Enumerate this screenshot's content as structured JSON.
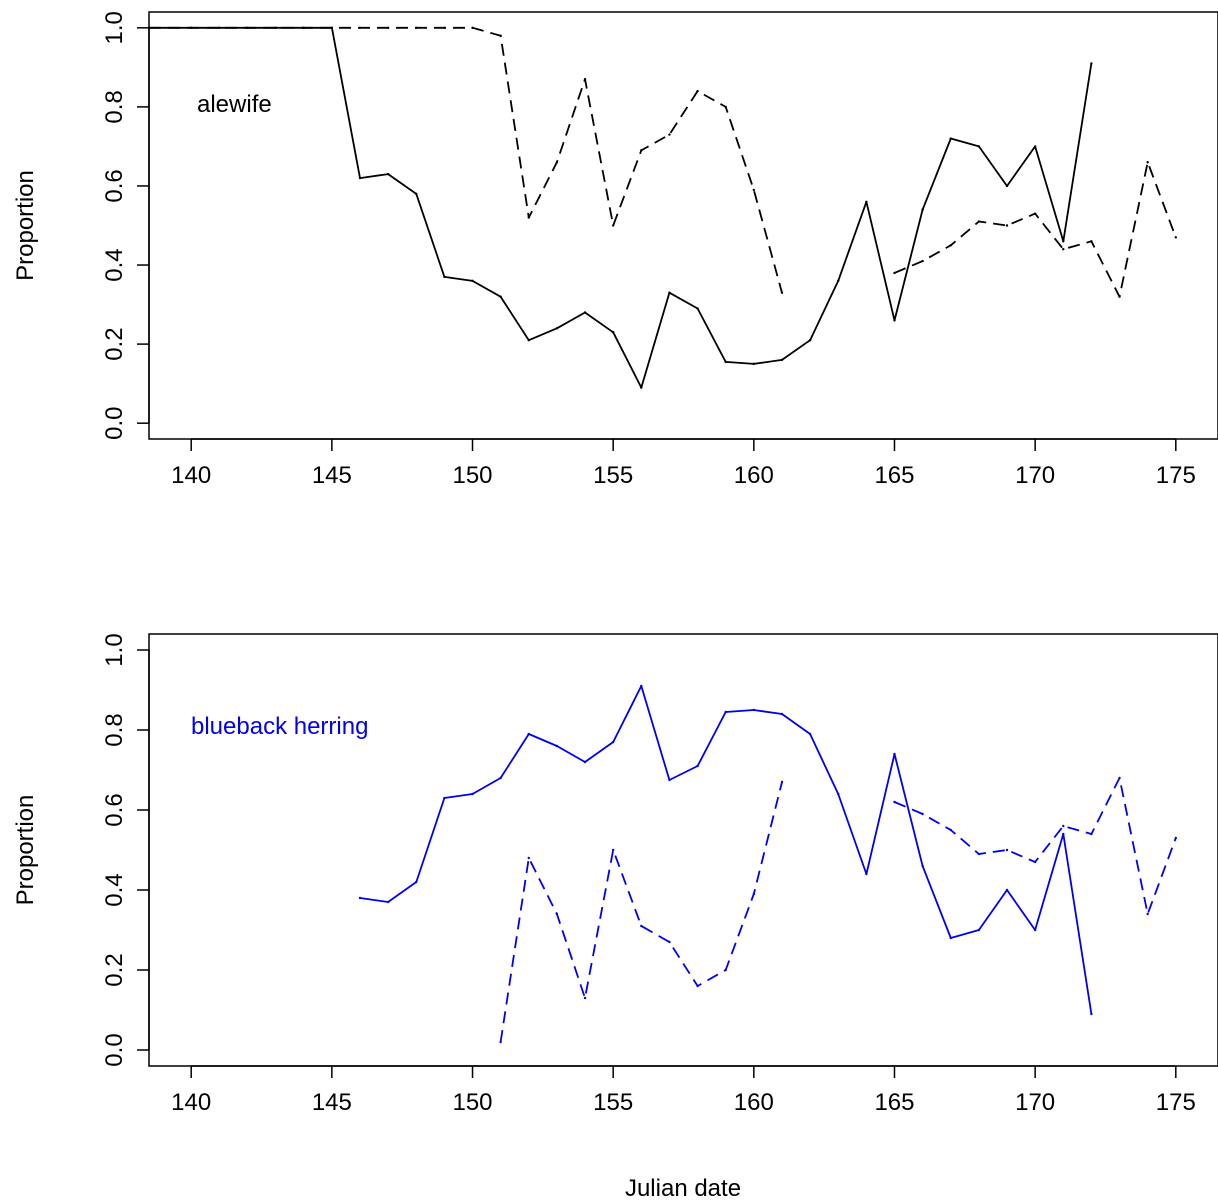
{
  "chart_data": [
    {
      "type": "line",
      "title": "",
      "annotation": "alewife",
      "color": "#000000",
      "xlabel": "",
      "ylabel": "Proportion",
      "xlim": [
        138.5,
        176.5
      ],
      "ylim": [
        -0.04,
        1.04
      ],
      "xticks": [
        140,
        145,
        150,
        155,
        160,
        165,
        170,
        175
      ],
      "yticks": [
        0.0,
        0.2,
        0.4,
        0.6,
        0.8,
        1.0
      ],
      "xtick_labels": [
        "140",
        "145",
        "150",
        "155",
        "160",
        "165",
        "170",
        "175"
      ],
      "ytick_labels": [
        "0.0",
        "0.2",
        "0.4",
        "0.6",
        "0.8",
        "1.0"
      ],
      "grid": false,
      "series": [
        {
          "style": "solid",
          "x": [
            138.5,
            140,
            141,
            142,
            143,
            144,
            145,
            146,
            147,
            148,
            149,
            150,
            151,
            152,
            153,
            154,
            155,
            156,
            157,
            158,
            159,
            160,
            161,
            162,
            163,
            164,
            165,
            166,
            167,
            168,
            169,
            170,
            171,
            172
          ],
          "y": [
            1.0,
            1.0,
            1.0,
            1.0,
            1.0,
            1.0,
            1.0,
            0.62,
            0.63,
            0.58,
            0.37,
            0.36,
            0.32,
            0.21,
            0.24,
            0.28,
            0.23,
            0.09,
            0.33,
            0.29,
            0.155,
            0.15,
            0.16,
            0.21,
            0.36,
            0.56,
            0.26,
            0.54,
            0.72,
            0.7,
            0.6,
            0.7,
            0.46,
            0.91
          ]
        },
        {
          "style": "dashed",
          "x": [
            138.5,
            140,
            141,
            142,
            143,
            144,
            145,
            146,
            147,
            148,
            149,
            150,
            151,
            152,
            153,
            154,
            155,
            156,
            157,
            158,
            159,
            160,
            161
          ],
          "y": [
            1.0,
            1.0,
            1.0,
            1.0,
            1.0,
            1.0,
            1.0,
            1.0,
            1.0,
            1.0,
            1.0,
            1.0,
            0.98,
            0.52,
            0.66,
            0.87,
            0.5,
            0.69,
            0.73,
            0.84,
            0.8,
            0.59,
            0.33
          ]
        },
        {
          "style": "dashed",
          "x": [
            165,
            166,
            167,
            168,
            169,
            170,
            171,
            172,
            173,
            174,
            175
          ],
          "y": [
            0.38,
            0.41,
            0.45,
            0.51,
            0.5,
            0.53,
            0.44,
            0.46,
            0.32,
            0.66,
            0.47
          ]
        }
      ]
    },
    {
      "type": "line",
      "title": "",
      "annotation": "blueback herring",
      "color": "#0000ee",
      "xlabel": "Julian date",
      "ylabel": "Proportion",
      "xlim": [
        138.5,
        176.5
      ],
      "ylim": [
        -0.04,
        1.04
      ],
      "xticks": [
        140,
        145,
        150,
        155,
        160,
        165,
        170,
        175
      ],
      "yticks": [
        0.0,
        0.2,
        0.4,
        0.6,
        0.8,
        1.0
      ],
      "xtick_labels": [
        "140",
        "145",
        "150",
        "155",
        "160",
        "165",
        "170",
        "175"
      ],
      "ytick_labels": [
        "0.0",
        "0.2",
        "0.4",
        "0.6",
        "0.8",
        "1.0"
      ],
      "grid": false,
      "series": [
        {
          "style": "solid",
          "x": [
            146,
            147,
            148,
            149,
            150,
            151,
            152,
            153,
            154,
            155,
            156,
            157,
            158,
            159,
            160,
            161,
            162,
            163,
            164,
            165,
            166,
            167,
            168,
            169,
            170,
            171,
            172
          ],
          "y": [
            0.38,
            0.37,
            0.42,
            0.63,
            0.64,
            0.68,
            0.79,
            0.76,
            0.72,
            0.77,
            0.91,
            0.675,
            0.71,
            0.845,
            0.85,
            0.84,
            0.79,
            0.64,
            0.44,
            0.74,
            0.46,
            0.28,
            0.3,
            0.4,
            0.3,
            0.54,
            0.09
          ]
        },
        {
          "style": "dashed",
          "x": [
            151,
            152,
            153,
            154,
            155,
            156,
            157,
            158,
            159,
            160,
            161
          ],
          "y": [
            0.02,
            0.48,
            0.34,
            0.13,
            0.5,
            0.31,
            0.27,
            0.16,
            0.2,
            0.39,
            0.67
          ]
        },
        {
          "style": "dashed",
          "x": [
            165,
            166,
            167,
            168,
            169,
            170,
            171,
            172,
            173,
            174,
            175
          ],
          "y": [
            0.62,
            0.59,
            0.55,
            0.49,
            0.5,
            0.47,
            0.56,
            0.54,
            0.68,
            0.34,
            0.53
          ]
        }
      ]
    }
  ]
}
